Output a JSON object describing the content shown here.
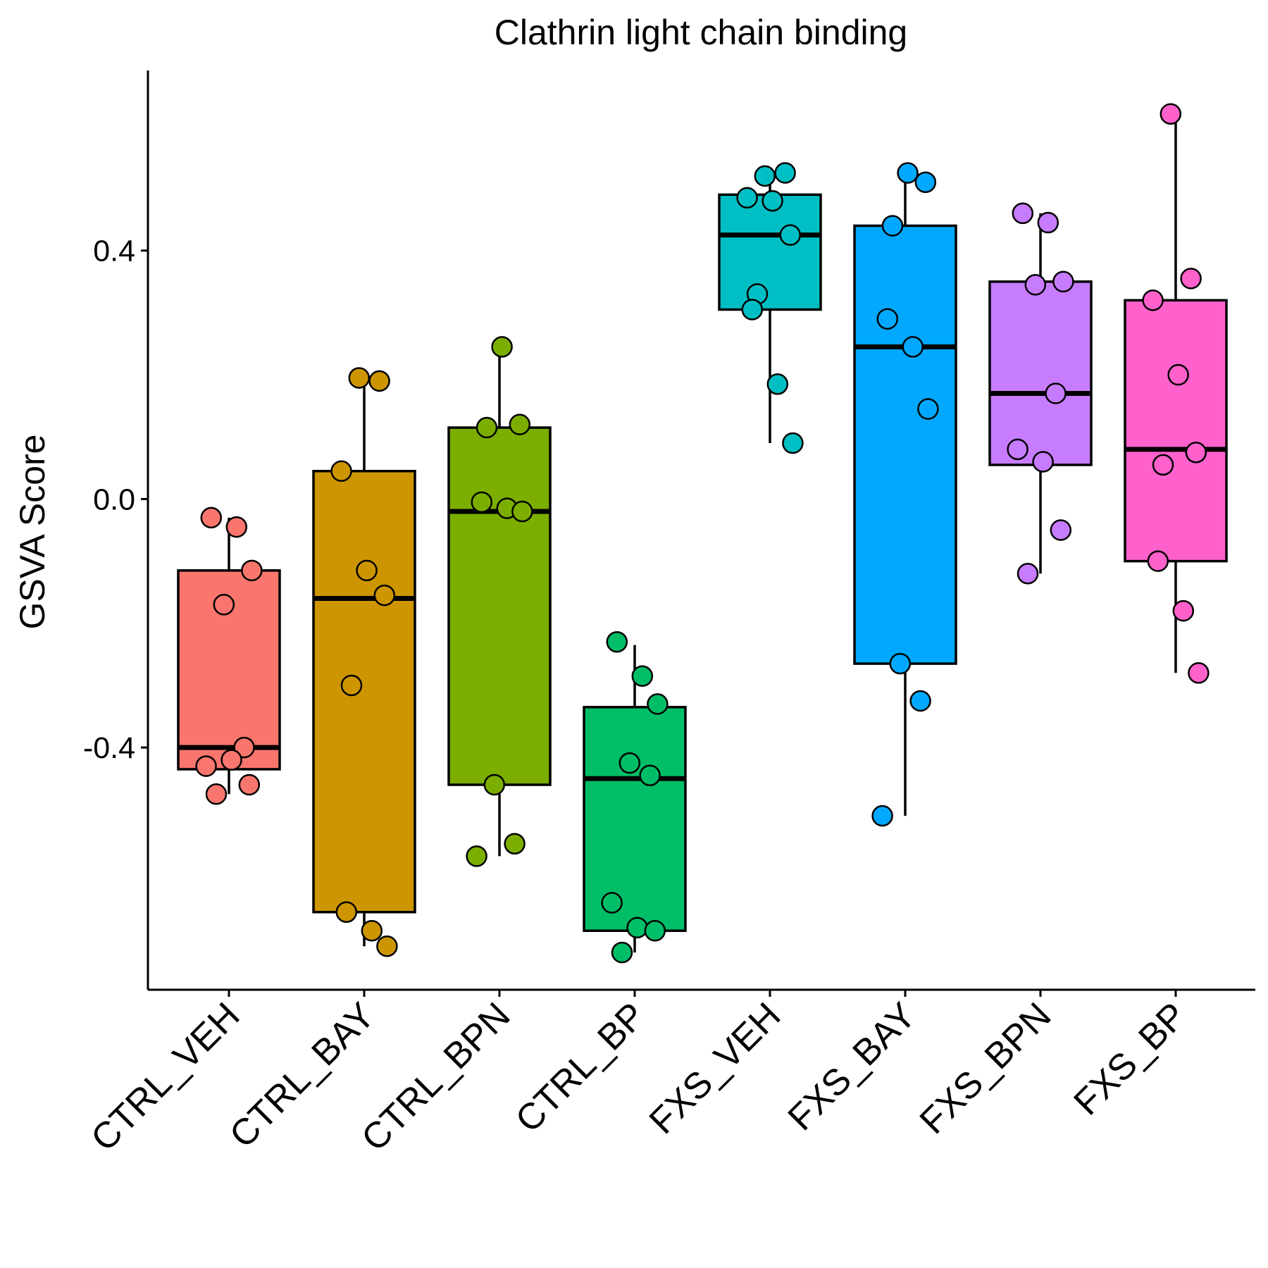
{
  "chart_data": {
    "type": "box",
    "title": "Clathrin light chain binding",
    "xlabel": "",
    "ylabel": "GSVA Score",
    "ylim": [
      -0.79,
      0.69
    ],
    "yticks": [
      0.4,
      0.0,
      -0.4
    ],
    "ytick_labels": [
      "0.4",
      "0.0",
      "-0.4"
    ],
    "grid": false,
    "legend": "none",
    "categories": [
      "CTRL_VEH",
      "CTRL_BAY",
      "CTRL_BPN",
      "CTRL_BP",
      "FXS_VEH",
      "FXS_BAY",
      "FXS_BPN",
      "FXS_BP"
    ],
    "colors": [
      "#F8766D",
      "#CD9600",
      "#7CAE00",
      "#00BE67",
      "#00BFC4",
      "#00A9FF",
      "#C77CFF",
      "#FF61CC"
    ],
    "boxes": [
      {
        "q1": -0.435,
        "median": -0.4,
        "q3": -0.115,
        "whisker_low": -0.475,
        "whisker_high": -0.03
      },
      {
        "q1": -0.665,
        "median": -0.16,
        "q3": 0.045,
        "whisker_low": -0.72,
        "whisker_high": 0.195
      },
      {
        "q1": -0.46,
        "median": -0.02,
        "q3": 0.115,
        "whisker_low": -0.575,
        "whisker_high": 0.245
      },
      {
        "q1": -0.695,
        "median": -0.45,
        "q3": -0.335,
        "whisker_low": -0.73,
        "whisker_high": -0.235
      },
      {
        "q1": 0.305,
        "median": 0.425,
        "q3": 0.49,
        "whisker_low": 0.09,
        "whisker_high": 0.525
      },
      {
        "q1": -0.265,
        "median": 0.245,
        "q3": 0.44,
        "whisker_low": -0.51,
        "whisker_high": 0.525
      },
      {
        "q1": 0.055,
        "median": 0.17,
        "q3": 0.35,
        "whisker_low": -0.12,
        "whisker_high": 0.46
      },
      {
        "q1": -0.1,
        "median": 0.08,
        "q3": 0.32,
        "whisker_low": -0.28,
        "whisker_high": 0.62
      }
    ],
    "points": [
      [
        -0.03,
        -0.045,
        -0.115,
        -0.17,
        -0.4,
        -0.43,
        -0.42,
        -0.46,
        -0.475
      ],
      [
        0.195,
        0.19,
        0.045,
        -0.115,
        -0.155,
        -0.3,
        -0.665,
        -0.695,
        -0.72
      ],
      [
        0.245,
        0.12,
        0.115,
        -0.005,
        -0.015,
        -0.02,
        -0.46,
        -0.555,
        -0.575
      ],
      [
        -0.23,
        -0.285,
        -0.33,
        -0.425,
        -0.445,
        -0.65,
        -0.69,
        -0.695,
        -0.73
      ],
      [
        0.52,
        0.525,
        0.485,
        0.48,
        0.425,
        0.33,
        0.305,
        0.185,
        0.09
      ],
      [
        0.525,
        0.51,
        0.44,
        0.29,
        0.245,
        0.145,
        -0.265,
        -0.325,
        -0.51
      ],
      [
        0.46,
        0.445,
        0.35,
        0.345,
        0.17,
        0.08,
        0.06,
        -0.05,
        -0.12
      ],
      [
        0.62,
        0.355,
        0.32,
        0.2,
        0.075,
        0.055,
        -0.1,
        -0.18,
        -0.28
      ]
    ]
  }
}
